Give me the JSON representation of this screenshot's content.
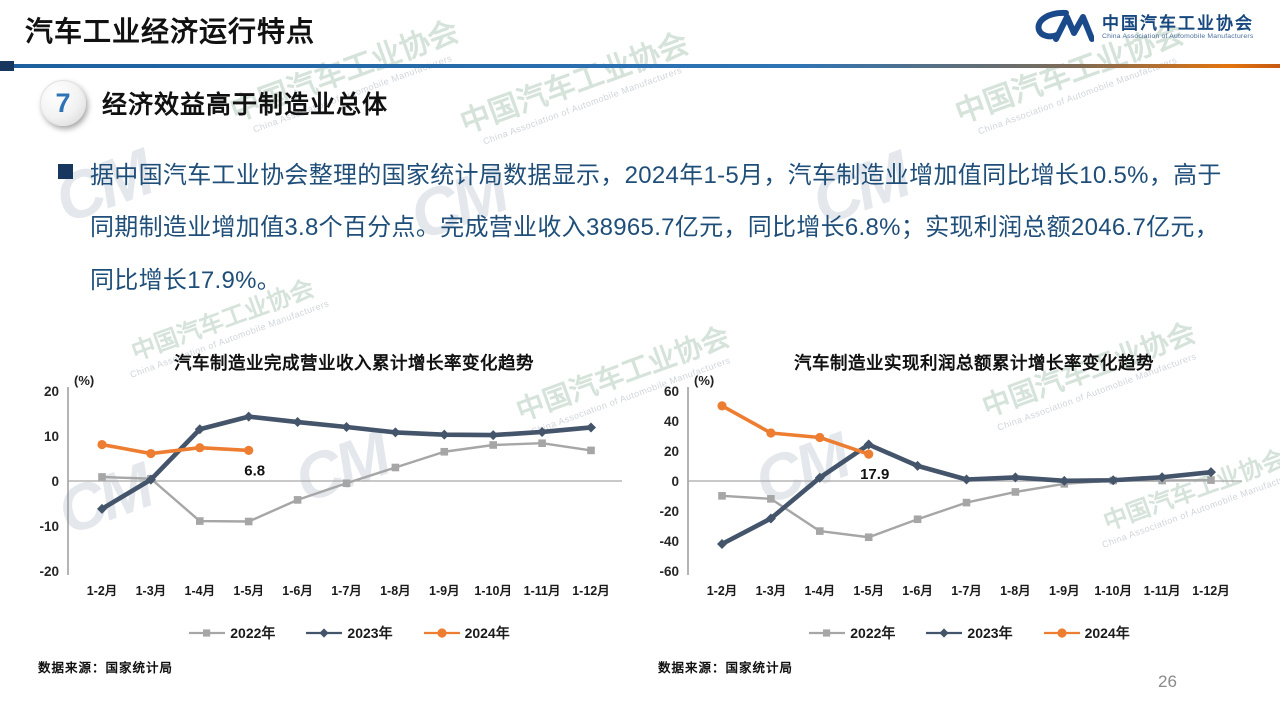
{
  "header": {
    "title": "汽车工业经济运行特点",
    "logo": {
      "monogram": "CM",
      "name_cn": "中国汽车工业协会",
      "name_en": "China Association of Automobile Manufacturers"
    }
  },
  "section": {
    "number": "7",
    "heading": "经济效益高于制造业总体"
  },
  "body": {
    "paragraph": "据中国汽车工业协会整理的国家统计局数据显示，2024年1-5月，汽车制造业增加值同比增长10.5%，高于同期制造业增加值3.8个百分点。完成营业收入38965.7亿元，同比增长6.8%；实现利润总额2046.7亿元，同比增长17.9%。"
  },
  "watermark": {
    "monogram": "CM",
    "text_cn": "中国汽车工业协会",
    "text_en": "China Association of Automobile Manufacturers"
  },
  "colors": {
    "accent_blue": "#2E74B5",
    "deep_blue": "#1F4E79",
    "series_2022": "#A6A6A6",
    "series_2023": "#44546A",
    "series_2024": "#ED7D31"
  },
  "chart_data": [
    {
      "type": "line",
      "title": "汽车制造业完成营业收入累计增长率变化趋势",
      "unit_label": "(%)",
      "categories": [
        "1-2月",
        "1-3月",
        "1-4月",
        "1-5月",
        "1-6月",
        "1-7月",
        "1-8月",
        "1-9月",
        "1-10月",
        "1-11月",
        "1-12月"
      ],
      "series": [
        {
          "name": "2022年",
          "color": "#A6A6A6",
          "marker": "square",
          "values": [
            0.9,
            0.5,
            -8.9,
            -9.0,
            -4.2,
            -0.5,
            3.0,
            6.5,
            8.0,
            8.4,
            6.8
          ]
        },
        {
          "name": "2023年",
          "color": "#44546A",
          "marker": "diamond",
          "values": [
            -6.2,
            0.3,
            11.5,
            14.3,
            13.1,
            12.0,
            10.8,
            10.3,
            10.2,
            10.9,
            11.9
          ]
        },
        {
          "name": "2024年",
          "color": "#ED7D31",
          "marker": "circle",
          "values": [
            8.1,
            6.1,
            7.4,
            6.8
          ],
          "last_label": "6.8"
        }
      ],
      "ylim": [
        -20,
        20
      ],
      "yticks": [
        20,
        10,
        0,
        -10,
        -20
      ],
      "grid": false,
      "legend_position": "bottom",
      "source": "数据来源：国家统计局"
    },
    {
      "type": "line",
      "title": "汽车制造业实现利润总额累计增长率变化趋势",
      "unit_label": "(%)",
      "categories": [
        "1-2月",
        "1-3月",
        "1-4月",
        "1-5月",
        "1-6月",
        "1-7月",
        "1-8月",
        "1-9月",
        "1-10月",
        "1-11月",
        "1-12月"
      ],
      "series": [
        {
          "name": "2022年",
          "color": "#A6A6A6",
          "marker": "square",
          "values": [
            -9.9,
            -11.9,
            -33.4,
            -37.5,
            -25.5,
            -14.4,
            -7.3,
            -1.9,
            0.3,
            0.3,
            0.6
          ]
        },
        {
          "name": "2023年",
          "color": "#44546A",
          "marker": "diamond",
          "values": [
            -42.0,
            -25.0,
            2.2,
            24.3,
            10.1,
            1.0,
            2.4,
            0.1,
            0.5,
            2.5,
            5.9
          ]
        },
        {
          "name": "2024年",
          "color": "#ED7D31",
          "marker": "circle",
          "values": [
            50.1,
            32.0,
            29.0,
            17.9
          ],
          "last_label": "17.9"
        }
      ],
      "ylim": [
        -60,
        60
      ],
      "yticks": [
        60,
        40,
        20,
        0,
        -20,
        -40,
        -60
      ],
      "grid": false,
      "legend_position": "bottom",
      "source": "数据来源：国家统计局"
    }
  ],
  "footer": {
    "page_number": "26"
  }
}
